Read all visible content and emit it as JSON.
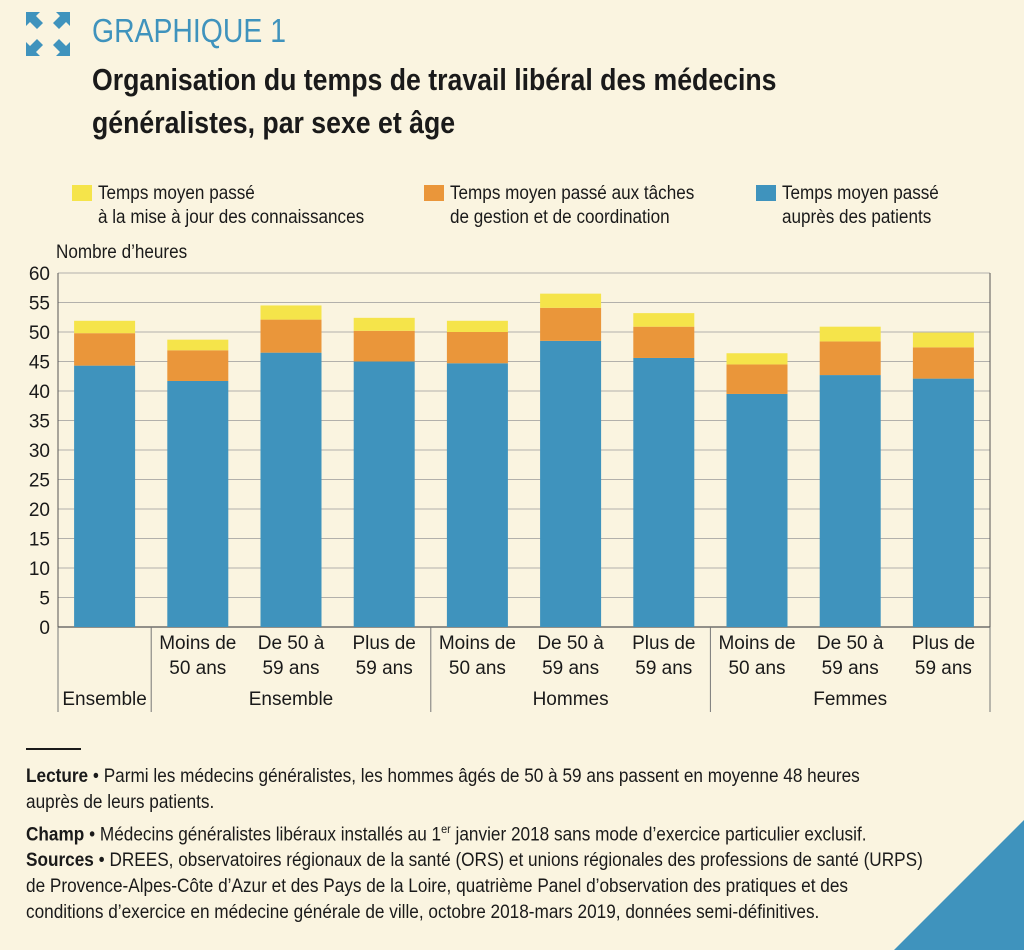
{
  "figure": {
    "label": "GRAPHIQUE 1",
    "title_line1": "Organisation du temps de travail libéral des médecins",
    "title_line2": "généralistes, par sexe et âge"
  },
  "legend": [
    {
      "line1": "Temps moyen passé",
      "line2": "à la mise à jour des connaissances",
      "color": "#f5e44a"
    },
    {
      "line1": "Temps moyen passé aux tâches",
      "line2": "de gestion et de coordination",
      "color": "#ea963a"
    },
    {
      "line1": "Temps moyen passé",
      "line2": "auprès des patients",
      "color": "#3f93bd"
    }
  ],
  "chart_data": {
    "type": "bar",
    "stacked": true,
    "ylabel": "Nombre d’heures",
    "ylim": [
      0,
      60
    ],
    "ytick_step": 5,
    "grid": true,
    "categories": [
      {
        "line1": "",
        "line2": "",
        "group": "Ensemble"
      },
      {
        "line1": "Moins de",
        "line2": "50 ans",
        "group": "Ensemble"
      },
      {
        "line1": "De 50 à",
        "line2": "59 ans",
        "group": "Ensemble"
      },
      {
        "line1": "Plus de",
        "line2": "59 ans",
        "group": "Ensemble"
      },
      {
        "line1": "Moins de",
        "line2": "50 ans",
        "group": "Hommes"
      },
      {
        "line1": "De 50 à",
        "line2": "59 ans",
        "group": "Hommes"
      },
      {
        "line1": "Plus de",
        "line2": "59 ans",
        "group": "Hommes"
      },
      {
        "line1": "Moins de",
        "line2": "50 ans",
        "group": "Femmes"
      },
      {
        "line1": "De 50 à",
        "line2": "59 ans",
        "group": "Femmes"
      },
      {
        "line1": "Plus de",
        "line2": "59 ans",
        "group": "Femmes"
      }
    ],
    "groups": [
      {
        "label": "Ensemble",
        "first": 0,
        "last": 0
      },
      {
        "label": "Ensemble",
        "first": 1,
        "last": 3
      },
      {
        "label": "Hommes",
        "first": 4,
        "last": 6
      },
      {
        "label": "Femmes",
        "first": 7,
        "last": 9
      }
    ],
    "series": [
      {
        "name": "Temps moyen passé auprès des patients",
        "color": "#3f93bd",
        "values": [
          44.3,
          41.7,
          46.5,
          45.0,
          44.7,
          48.5,
          45.6,
          39.5,
          42.7,
          42.1
        ]
      },
      {
        "name": "Temps moyen passé aux tâches de gestion et de coordination",
        "color": "#ea963a",
        "values": [
          5.5,
          5.2,
          5.6,
          5.2,
          5.3,
          5.6,
          5.3,
          5.0,
          5.7,
          5.3
        ]
      },
      {
        "name": "Temps moyen passé à la mise à jour des connaissances",
        "color": "#f5e44a",
        "values": [
          2.1,
          1.8,
          2.4,
          2.2,
          1.9,
          2.4,
          2.3,
          1.9,
          2.5,
          2.5
        ]
      }
    ]
  },
  "notes": {
    "lecture_label": "Lecture",
    "lecture_text_1": "Parmi les médecins généralistes, les hommes âgés de 50 à 59 ans passent en moyenne 48 heures",
    "lecture_text_2": "auprès de leurs patients.",
    "champ_label": "Champ",
    "champ_text_a": "Médecins généralistes libéraux installés au 1",
    "champ_sup": "er",
    "champ_text_b": " janvier 2018 sans mode d’exercice particulier exclusif.",
    "sources_label": "Sources",
    "sources_text_1": "DREES, observatoires régionaux de la santé (ORS) et unions régionales des professions de santé (URPS)",
    "sources_text_2": "de Provence-Alpes-Côte d’Azur et des Pays de la Loire, quatrième Panel d’observation des pratiques et des",
    "sources_text_3": "conditions d’exercice en médecine générale de ville, octobre 2018-mars 2019, données semi-définitives."
  }
}
